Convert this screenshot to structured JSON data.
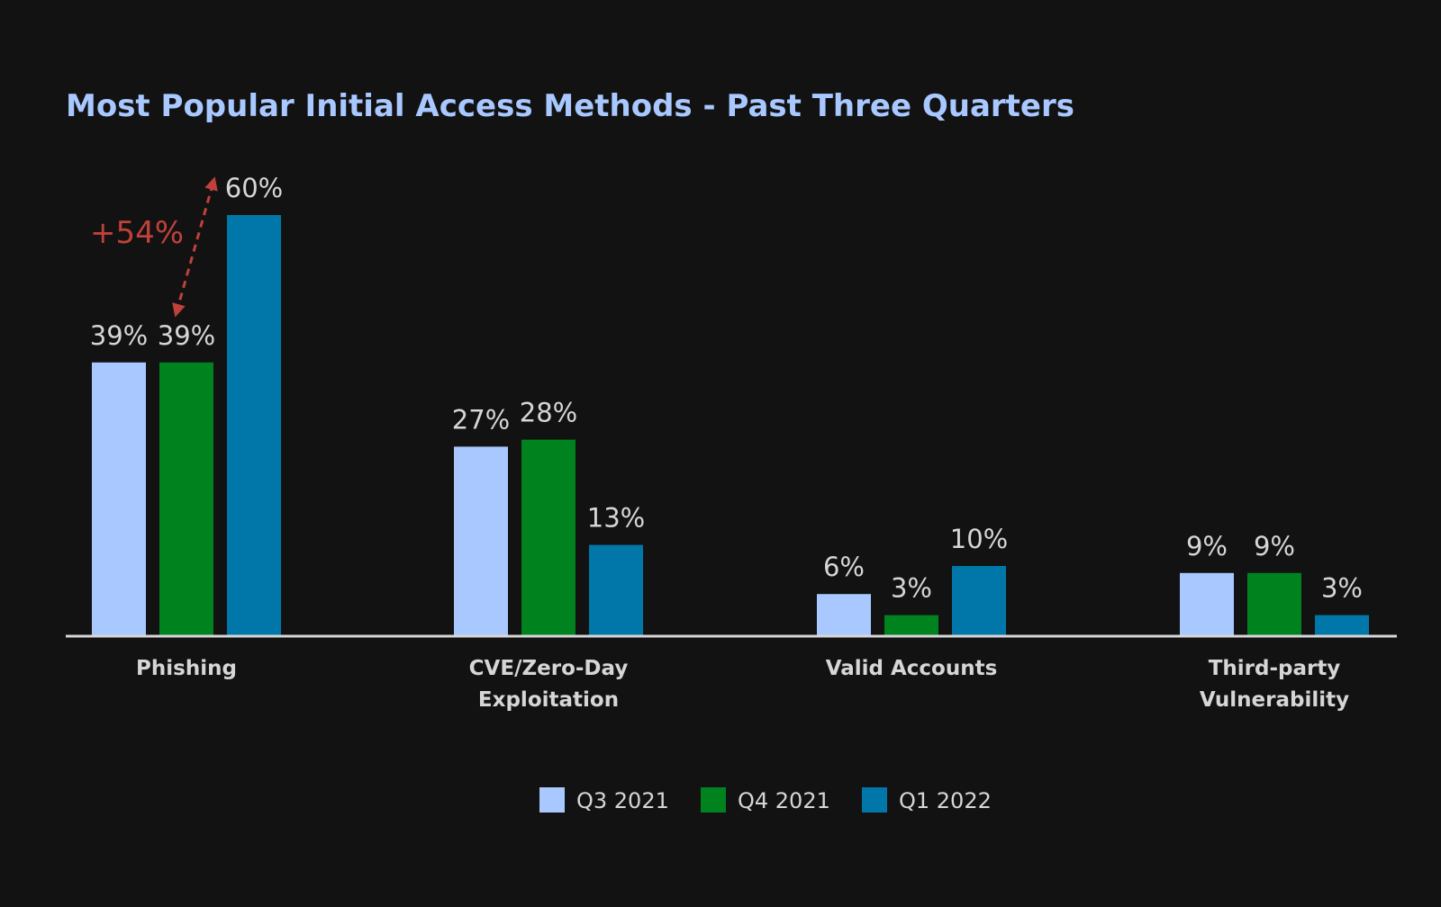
{
  "chart_data": {
    "type": "bar",
    "title": "Most Popular Initial Access Methods - Past Three Quarters",
    "categories": [
      [
        "Phishing"
      ],
      [
        "CVE/Zero-Day",
        "Exploitation"
      ],
      [
        "Valid Accounts"
      ],
      [
        "Third-party",
        "Vulnerability"
      ]
    ],
    "series": [
      {
        "name": "Q3 2021",
        "color": "#a8c8ff",
        "values": [
          39,
          27,
          6,
          9
        ],
        "labels": [
          "39%",
          "27%",
          "6%",
          "9%"
        ]
      },
      {
        "name": "Q4 2021",
        "color": "#00821f",
        "values": [
          39,
          28,
          3,
          9
        ],
        "labels": [
          "39%",
          "28%",
          "3%",
          "9%"
        ]
      },
      {
        "name": "Q1 2022",
        "color": "#0077a8",
        "values": [
          60,
          13,
          10,
          3
        ],
        "labels": [
          "60%",
          "13%",
          "10%",
          "3%"
        ]
      }
    ],
    "ylim": [
      0,
      60
    ],
    "xlabel": "",
    "ylabel": "",
    "grid": false,
    "legend_position": "bottom-center",
    "annotation": {
      "text": "+54%",
      "category_index": 0,
      "from_series": 1,
      "to_series": 2
    }
  },
  "colors": {
    "background": "#121212",
    "title": "#a8c8ff",
    "value_label": "#d6d6d6",
    "category_label": "#d6d6d6",
    "legend_label": "#d6d6d6",
    "axis": "#d6d6d6",
    "annotation": "#c0403a"
  }
}
